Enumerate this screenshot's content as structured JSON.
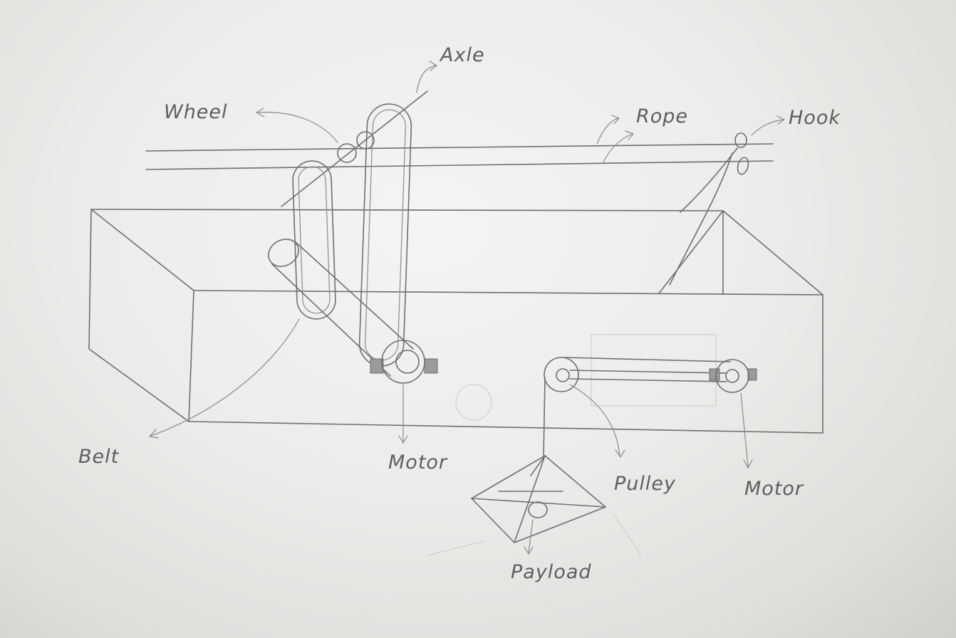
{
  "labels": {
    "wheel": "Wheel",
    "axle": "Axle",
    "rope": "Rope",
    "hook": "Hook",
    "belt": "Belt",
    "motor_left": "Motor",
    "pulley": "Pulley",
    "motor_right": "Motor",
    "payload": "Payload"
  },
  "colors": {
    "paper": "#ececea",
    "pencil": "#6f6f6f"
  }
}
